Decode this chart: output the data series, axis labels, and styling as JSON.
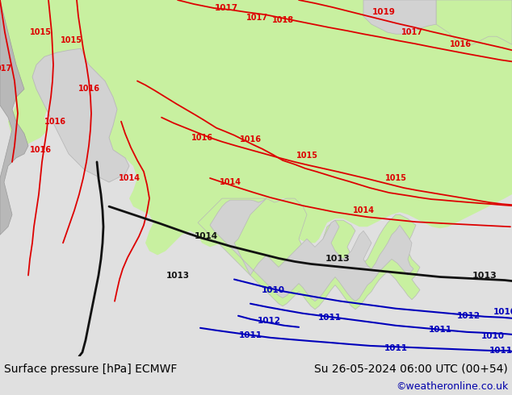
{
  "title_left": "Surface pressure [hPa] ECMWF",
  "title_right": "Su 26-05-2024 06:00 UTC (00+54)",
  "credit": "©weatheronline.co.uk",
  "sea_color": "#d2d2d2",
  "green_fill": "#c8f0a0",
  "grey_land": "#b8b8b8",
  "red": "#dd0000",
  "black": "#111111",
  "blue": "#0000bb",
  "bottom_bar_color": "#e0e0e0",
  "font_size_title": 10,
  "font_size_credit": 9
}
